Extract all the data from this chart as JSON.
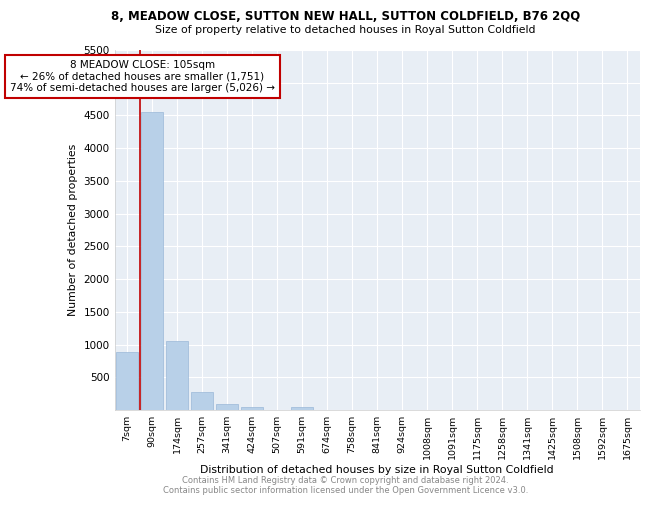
{
  "title_line1": "8, MEADOW CLOSE, SUTTON NEW HALL, SUTTON COLDFIELD, B76 2QQ",
  "title_line2": "Size of property relative to detached houses in Royal Sutton Coldfield",
  "xlabel": "Distribution of detached houses by size in Royal Sutton Coldfield",
  "ylabel": "Number of detached properties",
  "footer_line1": "Contains HM Land Registry data © Crown copyright and database right 2024.",
  "footer_line2": "Contains public sector information licensed under the Open Government Licence v3.0.",
  "annotation_title": "8 MEADOW CLOSE: 105sqm",
  "annotation_line1": "← 26% of detached houses are smaller (1,751)",
  "annotation_line2": "74% of semi-detached houses are larger (5,026) →",
  "cat_labels": [
    "7sqm",
    "90sqm",
    "174sqm",
    "257sqm",
    "341sqm",
    "424sqm",
    "507sqm",
    "591sqm",
    "674sqm",
    "758sqm",
    "841sqm",
    "924sqm",
    "1008sqm",
    "1091sqm",
    "1175sqm",
    "1258sqm",
    "1341sqm",
    "1425sqm",
    "1508sqm",
    "1592sqm",
    "1675sqm"
  ],
  "values": [
    880,
    4550,
    1060,
    280,
    90,
    40,
    0,
    50,
    0,
    0,
    0,
    0,
    0,
    0,
    0,
    0,
    0,
    0,
    0,
    0,
    0
  ],
  "bar_color": "#b8d0e8",
  "bar_edge_color": "#9ab8d8",
  "vline_color": "#c00000",
  "annotation_box_edge_color": "#c00000",
  "ylim": [
    0,
    5500
  ],
  "yticks": [
    0,
    500,
    1000,
    1500,
    2000,
    2500,
    3000,
    3500,
    4000,
    4500,
    5000,
    5500
  ],
  "background_color": "#ffffff",
  "plot_bg_color": "#e8eef5",
  "grid_color": "#ffffff",
  "vline_x_idx": 0.5
}
